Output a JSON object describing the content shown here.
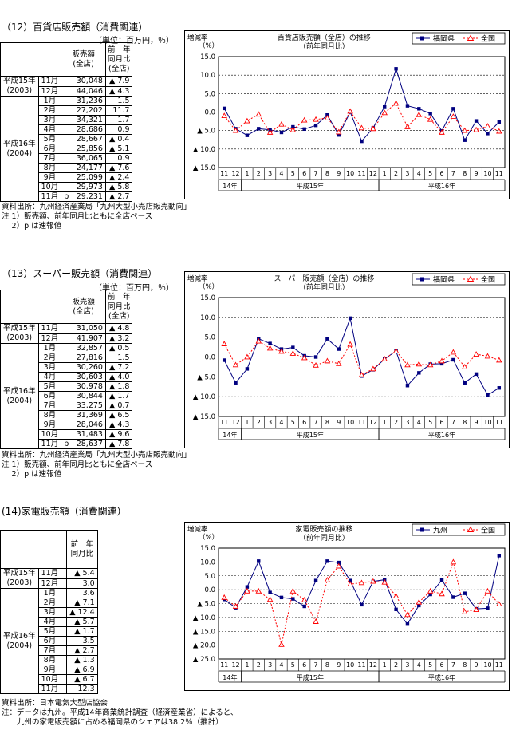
{
  "sections": [
    {
      "title": "（12）百貨店販売額（消費関連）",
      "unit": "（単位：百万円，％）",
      "headers": {
        "amount": "販売額\n(全店)",
        "yoy": "前　年\n同月比\n(全店)"
      },
      "groups": [
        {
          "year": "平成15年\n(2003)",
          "rows": [
            {
              "month": "11月",
              "amount": "30,048",
              "yoy": "▲ 7.9"
            },
            {
              "month": "12月",
              "amount": "44,046",
              "yoy": "▲ 4.3"
            }
          ]
        },
        {
          "year": "平成16年\n(2004)",
          "rows": [
            {
              "month": "1月",
              "amount": "31,236",
              "yoy": "1.5"
            },
            {
              "month": "2月",
              "amount": "27,202",
              "yoy": "11.7"
            },
            {
              "month": "3月",
              "amount": "34,321",
              "yoy": "1.7"
            },
            {
              "month": "4月",
              "amount": "28,686",
              "yoy": "0.9"
            },
            {
              "month": "5月",
              "amount": "28,667",
              "yoy": "▲ 0.4"
            },
            {
              "month": "6月",
              "amount": "25,856",
              "yoy": "▲ 5.1"
            },
            {
              "month": "7月",
              "amount": "36,065",
              "yoy": "0.9"
            },
            {
              "month": "8月",
              "amount": "24,177",
              "yoy": "▲ 7.6"
            },
            {
              "month": "9月",
              "amount": "25,099",
              "yoy": "▲ 2.4"
            },
            {
              "month": "10月",
              "amount": "29,973",
              "yoy": "▲ 5.8"
            },
            {
              "month": "11月",
              "amount": "p　29,231",
              "yoy": "▲ 2.7"
            }
          ]
        }
      ],
      "notes": [
        "資料出所：九州経済産業局「九州大型小売店販売動向」",
        "注 1）販売額、前年同月比ともに全店ベース",
        "　 2）p は速報値"
      ]
    },
    {
      "title": "（13）スーパー販売額（消費関連）",
      "unit": "（単位：百万円，％）",
      "headers": {
        "amount": "販売額\n(全店)",
        "yoy": "前　年\n同月比\n(全店)"
      },
      "groups": [
        {
          "year": "平成15年\n(2003)",
          "rows": [
            {
              "month": "11月",
              "amount": "31,050",
              "yoy": "▲ 4.8"
            },
            {
              "month": "12月",
              "amount": "41,907",
              "yoy": "▲ 3.2"
            }
          ]
        },
        {
          "year": "平成16年\n(2004)",
          "rows": [
            {
              "month": "1月",
              "amount": "32,857",
              "yoy": "▲ 0.5"
            },
            {
              "month": "2月",
              "amount": "27,816",
              "yoy": "1.5"
            },
            {
              "month": "3月",
              "amount": "30,260",
              "yoy": "▲ 7.2"
            },
            {
              "month": "4月",
              "amount": "30,603",
              "yoy": "▲ 4.0"
            },
            {
              "month": "5月",
              "amount": "30,978",
              "yoy": "▲ 1.8"
            },
            {
              "month": "6月",
              "amount": "30,844",
              "yoy": "▲ 1.7"
            },
            {
              "month": "7月",
              "amount": "33,275",
              "yoy": "▲ 0.7"
            },
            {
              "month": "8月",
              "amount": "31,369",
              "yoy": "▲ 6.5"
            },
            {
              "month": "9月",
              "amount": "28,046",
              "yoy": "▲ 4.3"
            },
            {
              "month": "10月",
              "amount": "31,483",
              "yoy": "▲ 9.6"
            },
            {
              "month": "11月",
              "amount": "p　28,637",
              "yoy": "▲ 7.8"
            }
          ]
        }
      ],
      "notes": [
        "資料出所：九州経済産業局「九州大型小売店販売動向」",
        "注 1）販売額、前年同月比ともに全店ベース",
        "　 2）p は速報値"
      ]
    },
    {
      "title": "(14)家電販売額（消費関連）",
      "unit": "",
      "headers": {
        "amount": "",
        "yoy": "前　年\n同月比"
      },
      "groups": [
        {
          "year": "平成15年\n(2003)",
          "rows": [
            {
              "month": "11月",
              "amount": "",
              "yoy": "▲ 5.4"
            },
            {
              "month": "12月",
              "amount": "",
              "yoy": "3.0"
            }
          ]
        },
        {
          "year": "平成16年\n(2004)",
          "rows": [
            {
              "month": "1月",
              "amount": "",
              "yoy": "3.6"
            },
            {
              "month": "2月",
              "amount": "",
              "yoy": "▲ 7.1"
            },
            {
              "month": "3月",
              "amount": "",
              "yoy": "▲ 12.4"
            },
            {
              "month": "4月",
              "amount": "",
              "yoy": "▲ 5.7"
            },
            {
              "month": "5月",
              "amount": "",
              "yoy": "▲ 1.7"
            },
            {
              "month": "6月",
              "amount": "",
              "yoy": "3.5"
            },
            {
              "month": "7月",
              "amount": "",
              "yoy": "▲ 2.7"
            },
            {
              "month": "8月",
              "amount": "",
              "yoy": "▲ 1.3"
            },
            {
              "month": "9月",
              "amount": "",
              "yoy": "▲ 6.9"
            },
            {
              "month": "10月",
              "amount": "",
              "yoy": "▲ 6.7"
            },
            {
              "month": "11月",
              "amount": "",
              "yoy": "12.3"
            }
          ]
        }
      ],
      "notes": [
        "資料出所：日本電気大型店協会",
        "注：データは九州。平成14年商業統計調査（経済産業省）によると、",
        "　　九州の家電販売額に占める福岡県のシェアは38.2％（推計）"
      ]
    }
  ],
  "chart_data": [
    {
      "type": "line",
      "title": "百貨店販売額（全店）の推移",
      "subtitle": "（前年同月比）",
      "ylabel": "増減率\n（%）",
      "ylim": [
        -15,
        15
      ],
      "yticks": [
        15,
        10,
        5,
        0,
        -5,
        -10,
        -15
      ],
      "ytick_labels": [
        "15.0",
        "10.0",
        "5.0",
        "0.0",
        "▲ 5.0",
        "▲ 10.0",
        "▲ 15.0"
      ],
      "x_month_labels": [
        "11",
        "12",
        "1",
        "2",
        "3",
        "4",
        "5",
        "6",
        "7",
        "8",
        "9",
        "10",
        "11",
        "12",
        "1",
        "2",
        "3",
        "4",
        "5",
        "6",
        "7",
        "8",
        "9",
        "10",
        "11"
      ],
      "x_year_labels": [
        {
          "label": "14年",
          "from": 0,
          "to": 1
        },
        {
          "label": "平成15年",
          "from": 2,
          "to": 13
        },
        {
          "label": "平成16年",
          "from": 14,
          "to": 24
        }
      ],
      "grid": true,
      "legend": "top-right",
      "series": [
        {
          "name": "福岡県",
          "color": "#000080",
          "marker": "square",
          "dash": false,
          "values": [
            1.0,
            -4.5,
            -6.3,
            -4.5,
            -4.8,
            -5.5,
            -4.0,
            -4.6,
            -3.6,
            -0.8,
            -6.2,
            0.0,
            -7.9,
            -4.3,
            1.5,
            11.7,
            1.7,
            0.9,
            -0.4,
            -5.1,
            0.9,
            -7.6,
            -2.4,
            -5.8,
            -2.7
          ]
        },
        {
          "name": "全国",
          "color": "#ff0000",
          "marker": "triangle",
          "dash": true,
          "values": [
            -1.0,
            -5.0,
            -2.4,
            -0.6,
            -5.5,
            -3.3,
            -4.8,
            -2.2,
            -2.0,
            -1.6,
            -5.4,
            0.2,
            -4.3,
            -4.5,
            -0.2,
            2.4,
            -4.0,
            -0.7,
            -2.0,
            -5.5,
            -1.2,
            -5.0,
            -4.8,
            -3.8,
            -5.2
          ]
        }
      ]
    },
    {
      "type": "line",
      "title": "スーパー販売額（全店）の推移",
      "subtitle": "（前年同月比）",
      "ylabel": "増減率\n（%）",
      "ylim": [
        -15,
        15
      ],
      "yticks": [
        15,
        10,
        5,
        0,
        -5,
        -10,
        -15
      ],
      "ytick_labels": [
        "15.0",
        "10.0",
        "5.0",
        "0.0",
        "▲ 5.0",
        "▲ 10.0",
        "▲ 15.0"
      ],
      "x_month_labels": [
        "11",
        "12",
        "1",
        "2",
        "3",
        "4",
        "5",
        "6",
        "7",
        "8",
        "9",
        "10",
        "11",
        "12",
        "1",
        "2",
        "3",
        "4",
        "5",
        "6",
        "7",
        "8",
        "9",
        "10",
        "11"
      ],
      "x_year_labels": [
        {
          "label": "14年",
          "from": 0,
          "to": 1
        },
        {
          "label": "平成15年",
          "from": 2,
          "to": 13
        },
        {
          "label": "平成16年",
          "from": 14,
          "to": 24
        }
      ],
      "grid": true,
      "legend": "top-right",
      "series": [
        {
          "name": "福岡県",
          "color": "#000080",
          "marker": "square",
          "dash": false,
          "values": [
            -0.8,
            -6.5,
            -3.0,
            4.6,
            3.4,
            2.0,
            2.4,
            0.3,
            0.0,
            4.6,
            2.0,
            9.8,
            -4.8,
            -3.2,
            -0.5,
            1.5,
            -7.2,
            -4.0,
            -1.8,
            -1.7,
            -0.7,
            -6.5,
            -4.3,
            -9.6,
            -7.8
          ]
        },
        {
          "name": "全国",
          "color": "#ff0000",
          "marker": "triangle",
          "dash": true,
          "values": [
            3.3,
            -2.0,
            0.0,
            4.0,
            2.2,
            1.4,
            0.9,
            -0.2,
            -2.1,
            -1.0,
            -1.7,
            3.2,
            -4.5,
            -3.0,
            -0.5,
            1.5,
            -2.0,
            -1.8,
            -2.0,
            -1.0,
            1.2,
            -2.5,
            0.7,
            0.2,
            -0.8
          ]
        }
      ]
    },
    {
      "type": "line",
      "title": "家電販売額の推移",
      "subtitle": "（前年同月比）",
      "ylabel": "増減率\n（%）",
      "ylim": [
        -25,
        15
      ],
      "yticks": [
        15,
        10,
        5,
        0,
        -5,
        -10,
        -15,
        -20,
        -25
      ],
      "ytick_labels": [
        "15.0",
        "10.0",
        "5.0",
        "0.0",
        "▲ 5.0",
        "▲ 10.0",
        "▲ 15.0",
        "▲ 20.0",
        "▲ 25.0"
      ],
      "x_month_labels": [
        "11",
        "12",
        "1",
        "2",
        "3",
        "4",
        "5",
        "6",
        "7",
        "8",
        "9",
        "10",
        "11",
        "12",
        "1",
        "2",
        "3",
        "4",
        "5",
        "6",
        "7",
        "8",
        "9",
        "10",
        "11"
      ],
      "x_year_labels": [
        {
          "label": "14年",
          "from": 0,
          "to": 1
        },
        {
          "label": "平成15年",
          "from": 2,
          "to": 13
        },
        {
          "label": "平成16年",
          "from": 14,
          "to": 24
        }
      ],
      "grid": true,
      "legend": "top-right",
      "series": [
        {
          "name": "九州",
          "color": "#000080",
          "marker": "square",
          "dash": false,
          "values": [
            -3.5,
            -6.5,
            1.0,
            10.3,
            -1.0,
            -2.8,
            -3.3,
            -6.0,
            3.3,
            10.3,
            9.8,
            3.3,
            -5.4,
            3.0,
            3.6,
            -7.1,
            -12.4,
            -5.7,
            -1.7,
            3.5,
            -2.7,
            -1.3,
            -6.9,
            -6.7,
            12.3
          ]
        },
        {
          "name": "全国",
          "color": "#ff0000",
          "marker": "triangle",
          "dash": true,
          "values": [
            -2.8,
            -6.0,
            -0.5,
            -0.5,
            -3.5,
            -19.8,
            -0.5,
            -3.7,
            -11.5,
            3.5,
            8.5,
            2.0,
            2.5,
            3.0,
            2.7,
            -2.3,
            -9.0,
            -4.5,
            -0.5,
            -1.5,
            10.0,
            -8.0,
            -7.2,
            -0.5,
            -5.2
          ]
        }
      ]
    }
  ]
}
